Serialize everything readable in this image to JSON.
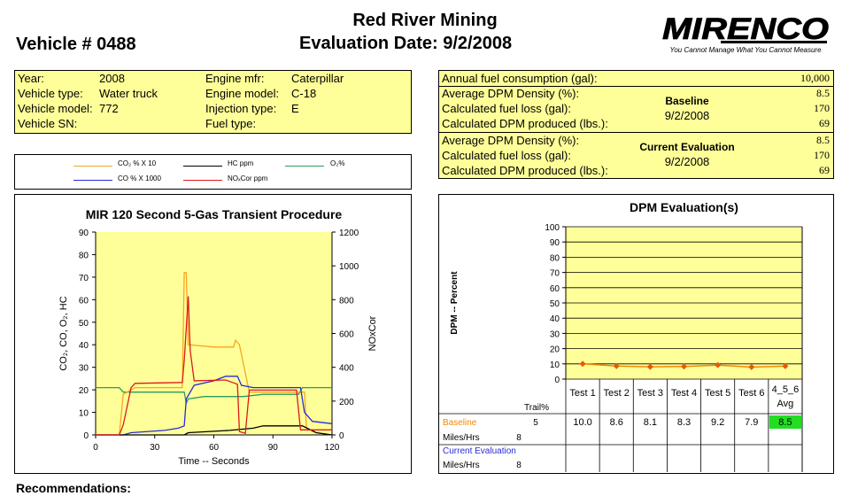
{
  "header": {
    "company": "Red River Mining",
    "evaluation": "Evaluation Date: 9/2/2008",
    "vehicle": "Vehicle # 0488",
    "logo_text": "MIRENCO",
    "logo_tagline": "You Cannot Manage What You Cannot Measure"
  },
  "info": {
    "year_label": "Year:",
    "year": "2008",
    "type_label": "Vehicle type:",
    "type": "Water truck",
    "model_label": "Vehicle model:",
    "model": "772",
    "sn_label": "Vehicle SN:",
    "sn": "",
    "mfr_label": "Engine mfr:",
    "mfr": "Caterpillar",
    "emodel_label": "Engine model:",
    "emodel": "C-18",
    "inj_label": "Injection type:",
    "inj": "E",
    "fuel_label": "Fuel type:",
    "fuel": ""
  },
  "fuel": {
    "annual_label": "Annual fuel consumption (gal):",
    "annual": "10,000",
    "density_label": "Average DPM Density (%):",
    "loss_label": "Calculated fuel loss (gal):",
    "produced_label": "Calculated DPM produced (lbs.):",
    "baseline": {
      "title": "Baseline",
      "date": "9/2/2008",
      "density": "8.5",
      "loss": "170",
      "produced": "69"
    },
    "current": {
      "title": "Current Evaluation",
      "date": "9/2/2008",
      "density": "8.5",
      "loss": "170",
      "produced": "69"
    }
  },
  "colors": {
    "co2": "#f5a623",
    "hc": "#000000",
    "o2": "#2a9d5c",
    "co": "#2a2ad8",
    "nox": "#dd1a1a",
    "plot_bg": "#ffff99",
    "avg_green": "#22dd22",
    "baseline_text": "#f08a00",
    "current_text": "#2a2ad8"
  },
  "legend": [
    {
      "text": "CO₂ % X 10",
      "color": "#f5a623"
    },
    {
      "text": "HC ppm",
      "color": "#000000"
    },
    {
      "text": "O₂%",
      "color": "#2a9d5c"
    },
    {
      "text": "CO % X 1000",
      "color": "#2a2ad8"
    },
    {
      "text": "NOₓCor ppm",
      "color": "#dd1a1a"
    }
  ],
  "recommendations_label": "Recommendations:",
  "chart_data": [
    {
      "type": "line",
      "title": "MIR 120 Second 5-Gas Transient Procedure",
      "xlabel": "Time -- Seconds",
      "ylabel": "CO₂, CO, O₂, HC",
      "y2label": "NOxCor",
      "xlim": [
        0,
        120
      ],
      "ylim": [
        0,
        90
      ],
      "y2lim": [
        0,
        1200
      ],
      "xticks": [
        0,
        30,
        60,
        90,
        120
      ],
      "yticks": [
        0,
        10,
        20,
        30,
        40,
        50,
        60,
        70,
        80,
        90
      ],
      "y2ticks": [
        0,
        200,
        400,
        600,
        800,
        1000,
        1200
      ],
      "series": [
        {
          "key": "o2",
          "axis": "left",
          "points": [
            [
              0,
              21
            ],
            [
              12,
              21
            ],
            [
              14,
              19
            ],
            [
              20,
              19
            ],
            [
              45,
              19
            ],
            [
              46,
              14
            ],
            [
              47,
              16
            ],
            [
              55,
              17
            ],
            [
              65,
              17
            ],
            [
              75,
              17
            ],
            [
              85,
              18
            ],
            [
              90,
              18
            ],
            [
              103,
              18
            ],
            [
              105,
              21
            ],
            [
              120,
              21
            ]
          ]
        },
        {
          "key": "co2",
          "axis": "left",
          "points": [
            [
              0,
              0
            ],
            [
              12,
              0
            ],
            [
              14,
              18
            ],
            [
              20,
              21
            ],
            [
              44,
              21
            ],
            [
              45,
              72
            ],
            [
              46,
              72
            ],
            [
              47,
              40
            ],
            [
              60,
              39
            ],
            [
              70,
              39
            ],
            [
              71,
              42
            ],
            [
              73,
              40
            ],
            [
              78,
              19
            ],
            [
              90,
              19
            ],
            [
              106,
              19
            ],
            [
              107,
              3
            ],
            [
              112,
              1
            ],
            [
              120,
              0
            ]
          ]
        },
        {
          "key": "co",
          "axis": "left",
          "points": [
            [
              0,
              0
            ],
            [
              14,
              0
            ],
            [
              18,
              1
            ],
            [
              35,
              2
            ],
            [
              42,
              3
            ],
            [
              45,
              4
            ],
            [
              46,
              16
            ],
            [
              50,
              22
            ],
            [
              60,
              24
            ],
            [
              66,
              26
            ],
            [
              72,
              26
            ],
            [
              74,
              22
            ],
            [
              80,
              21
            ],
            [
              104,
              21
            ],
            [
              106,
              10
            ],
            [
              110,
              6
            ],
            [
              120,
              5
            ]
          ]
        },
        {
          "key": "hc",
          "axis": "left",
          "points": [
            [
              0,
              0
            ],
            [
              45,
              0
            ],
            [
              47,
              1
            ],
            [
              68,
              2
            ],
            [
              80,
              3
            ],
            [
              85,
              4
            ],
            [
              105,
              4
            ],
            [
              112,
              1
            ],
            [
              120,
              0
            ]
          ]
        },
        {
          "key": "nox",
          "axis": "right",
          "points": [
            [
              0,
              0
            ],
            [
              12,
              0
            ],
            [
              14,
              60
            ],
            [
              18,
              280
            ],
            [
              20,
              305
            ],
            [
              44,
              310
            ],
            [
              45,
              440
            ],
            [
              47,
              820
            ],
            [
              48,
              500
            ],
            [
              50,
              320
            ],
            [
              66,
              325
            ],
            [
              72,
              300
            ],
            [
              73,
              20
            ],
            [
              76,
              10
            ],
            [
              78,
              265
            ],
            [
              102,
              265
            ],
            [
              104,
              30
            ],
            [
              120,
              30
            ]
          ]
        }
      ]
    },
    {
      "type": "line",
      "title": "DPM Evaluation(s)",
      "ylabel": "DPM -- Percent",
      "ylim": [
        0,
        100
      ],
      "yticks": [
        0,
        10,
        20,
        30,
        40,
        50,
        60,
        70,
        80,
        90,
        100
      ],
      "categories": [
        "Test 1",
        "Test 2",
        "Test 3",
        "Test 4",
        "Test 5",
        "Test 6",
        "4_5_6 Avg"
      ],
      "values": [
        10.0,
        8.6,
        8.1,
        8.3,
        9.2,
        7.9,
        8.5
      ],
      "table": {
        "trail_label": "Trail%",
        "baseline_label": "Baseline",
        "baseline_trail": "5",
        "baseline_values": [
          "10.0",
          "8.6",
          "8.1",
          "8.3",
          "9.2",
          "7.9",
          "8.5"
        ],
        "current_label": "Current Evaluation",
        "miles_label": "Miles/Hrs",
        "baseline_miles": "8",
        "current_miles": "8"
      }
    }
  ]
}
